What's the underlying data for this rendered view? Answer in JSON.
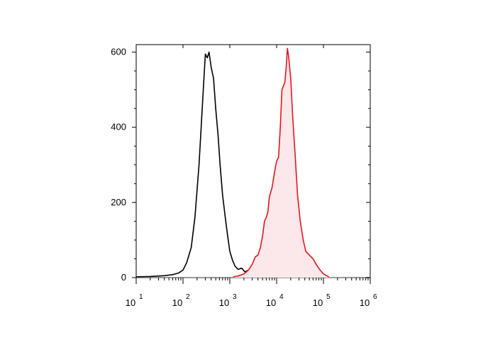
{
  "chart_data": {
    "type": "area",
    "title": "",
    "xlabel": "",
    "ylabel": "",
    "x_scale": "log",
    "xlim": [
      10,
      1000000
    ],
    "ylim": [
      0,
      620
    ],
    "y_ticks": [
      0,
      200,
      400,
      600
    ],
    "y_tick_labels": [
      "0",
      "200",
      "400",
      "600"
    ],
    "x_ticks": [
      {
        "value": 10,
        "base": "10",
        "exp": "1"
      },
      {
        "value": 100,
        "base": "10",
        "exp": "2"
      },
      {
        "value": 1000,
        "base": "10",
        "exp": "3"
      },
      {
        "value": 10000,
        "base": "10",
        "exp": "4"
      },
      {
        "value": 100000,
        "base": "10",
        "exp": "5"
      },
      {
        "value": 1000000,
        "base": "10",
        "exp": "6"
      }
    ],
    "grid": false,
    "legend": "none",
    "series": [
      {
        "color": "#000000",
        "fill": "none",
        "x": [
          10,
          20,
          40,
          60,
          80,
          100,
          120,
          150,
          180,
          220,
          260,
          300,
          330,
          360,
          400,
          450,
          500,
          560,
          620,
          700,
          800,
          900,
          1000,
          1150,
          1300,
          1500,
          1800,
          2100,
          2500,
          3000,
          3500,
          4000,
          5000,
          6000,
          8000
        ],
        "values": [
          2,
          3,
          5,
          8,
          12,
          20,
          40,
          80,
          160,
          300,
          460,
          595,
          585,
          600,
          560,
          530,
          450,
          380,
          300,
          220,
          160,
          110,
          70,
          45,
          30,
          22,
          25,
          15,
          20,
          18,
          12,
          8,
          5,
          3,
          2
        ]
      },
      {
        "color": "#e8161b",
        "fill": "#fce8ea",
        "x": [
          1200,
          1600,
          2000,
          2500,
          3000,
          3500,
          4000,
          4500,
          5000,
          5500,
          6000,
          6500,
          7000,
          8000,
          9000,
          10000,
          11000,
          12000,
          13000,
          14000,
          15000,
          16000,
          17000,
          18000,
          20000,
          22000,
          25000,
          28000,
          32000,
          37000,
          42000,
          50000,
          60000,
          70000,
          85000,
          100000,
          130000
        ],
        "values": [
          2,
          5,
          10,
          20,
          35,
          55,
          60,
          80,
          110,
          150,
          160,
          175,
          215,
          240,
          280,
          310,
          320,
          400,
          500,
          510,
          520,
          560,
          610,
          590,
          530,
          430,
          320,
          220,
          150,
          100,
          70,
          60,
          50,
          35,
          20,
          10,
          2
        ]
      }
    ]
  }
}
